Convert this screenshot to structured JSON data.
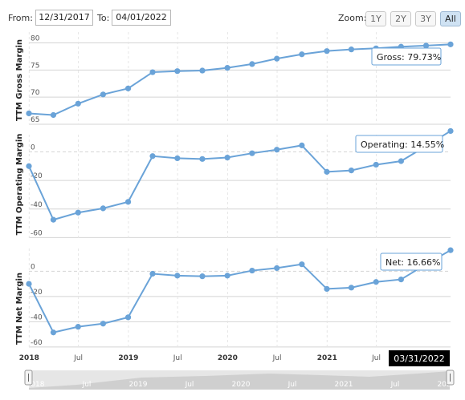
{
  "controls": {
    "from_label": "From:",
    "from_value": "12/31/2017",
    "to_label": "To:",
    "to_value": "04/01/2022",
    "zoom_label": "Zoom:",
    "zoom_buttons": [
      "1Y",
      "2Y",
      "3Y",
      "All"
    ],
    "active_zoom": "All"
  },
  "colors": {
    "line": "#6aa3d8",
    "grid": "#d4d4d4",
    "tooltip_bg": "#ffffff",
    "tooltip_border": "#6aa3d8",
    "crosshair_bg": "#000000",
    "navigator_bg": "#e6e6e6"
  },
  "crosshair_label": "03/31/2022",
  "chart_data": [
    {
      "type": "line",
      "ylabel": "TTM Gross Margin",
      "ylim": [
        65,
        82
      ],
      "yticks": [
        65,
        70,
        75,
        80
      ],
      "x": [
        "2017-12-31",
        "2018-03-31",
        "2018-06-30",
        "2018-09-30",
        "2018-12-31",
        "2019-03-31",
        "2019-06-30",
        "2019-09-30",
        "2019-12-31",
        "2020-03-31",
        "2020-06-30",
        "2020-09-30",
        "2020-12-31",
        "2021-03-31",
        "2021-06-30",
        "2021-09-30",
        "2021-12-31",
        "2022-03-31"
      ],
      "values": [
        67.0,
        66.7,
        68.8,
        70.5,
        71.6,
        74.6,
        74.8,
        74.9,
        75.4,
        76.1,
        77.1,
        77.9,
        78.5,
        78.8,
        79.0,
        79.3,
        79.5,
        79.73
      ],
      "tooltip": "Gross: 79.73%"
    },
    {
      "type": "line",
      "ylabel": "TTM Operating Margin",
      "ylim": [
        -62,
        12
      ],
      "yticks": [
        -60,
        -40,
        -20,
        0
      ],
      "x": [
        "2017-12-31",
        "2018-03-31",
        "2018-06-30",
        "2018-09-30",
        "2018-12-31",
        "2019-03-31",
        "2019-06-30",
        "2019-09-30",
        "2019-12-31",
        "2020-03-31",
        "2020-06-30",
        "2020-09-30",
        "2020-12-31",
        "2021-03-31",
        "2021-06-30",
        "2021-09-30",
        "2021-12-31",
        "2022-03-31"
      ],
      "values": [
        -10.0,
        -47.5,
        -42.5,
        -39.5,
        -35.0,
        -3.0,
        -4.5,
        -5.0,
        -4.0,
        -1.0,
        1.5,
        4.5,
        -14.0,
        -13.0,
        -9.0,
        -6.5,
        4.0,
        14.55
      ],
      "tooltip": "Operating: 14.55%"
    },
    {
      "type": "line",
      "ylabel": "TTM Net Margin",
      "ylim": [
        -62,
        18
      ],
      "yticks": [
        -60,
        -40,
        -20,
        0
      ],
      "x": [
        "2017-12-31",
        "2018-03-31",
        "2018-06-30",
        "2018-09-30",
        "2018-12-31",
        "2019-03-31",
        "2019-06-30",
        "2019-09-30",
        "2019-12-31",
        "2020-03-31",
        "2020-06-30",
        "2020-09-30",
        "2020-12-31",
        "2021-03-31",
        "2021-06-30",
        "2021-09-30",
        "2021-12-31",
        "2022-03-31"
      ],
      "values": [
        -10.0,
        -48.5,
        -44.0,
        -41.5,
        -36.5,
        -2.0,
        -3.5,
        -4.0,
        -3.5,
        0.5,
        2.5,
        5.5,
        -14.0,
        -13.0,
        -8.5,
        -6.5,
        5.5,
        16.66
      ],
      "tooltip": "Net: 16.66%"
    }
  ],
  "x_axis": {
    "range": [
      "2017-12-31",
      "2022-03-31"
    ],
    "ticks": [
      {
        "label": "2018",
        "date": "2018-01-01",
        "year": true
      },
      {
        "label": "Jul",
        "date": "2018-07-01",
        "year": false
      },
      {
        "label": "2019",
        "date": "2019-01-01",
        "year": true
      },
      {
        "label": "Jul",
        "date": "2019-07-01",
        "year": false
      },
      {
        "label": "2020",
        "date": "2020-01-01",
        "year": true
      },
      {
        "label": "Jul",
        "date": "2020-07-01",
        "year": false
      },
      {
        "label": "2021",
        "date": "2021-01-01",
        "year": true
      },
      {
        "label": "Jul",
        "date": "2021-07-01",
        "year": false
      }
    ]
  },
  "navigator": {
    "labels": [
      "2018",
      "Jul",
      "2019",
      "Jul",
      "2020",
      "Jul",
      "2021",
      "Jul",
      "2022"
    ]
  }
}
